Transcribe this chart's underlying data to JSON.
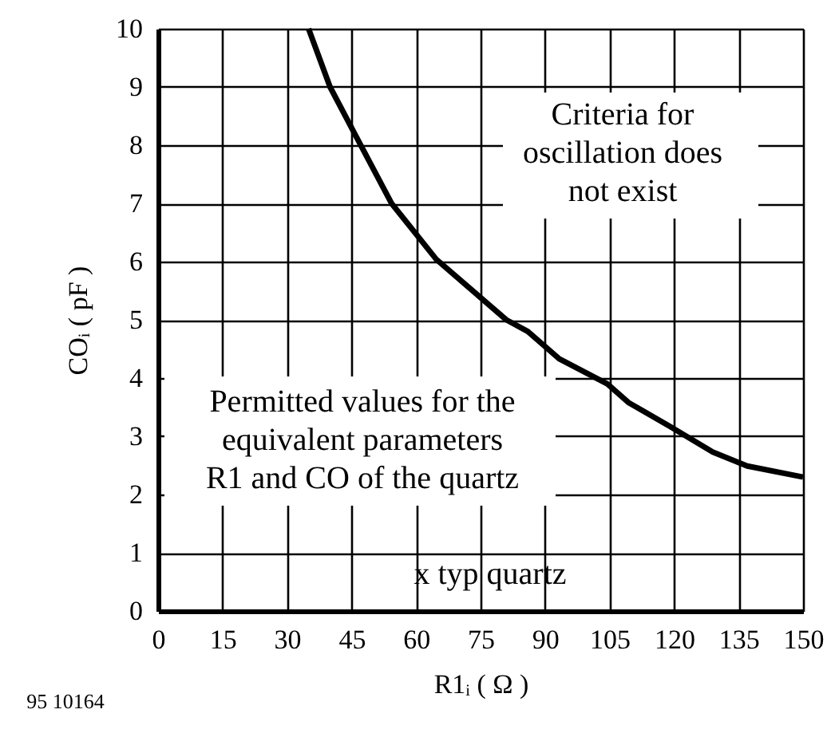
{
  "chart_data": {
    "type": "line",
    "xlabel": "R1ᵢ ( Ω )",
    "ylabel": "COᵢ ( pF )",
    "annotations": [
      "Criteria for\noscillation does\nnot exist",
      "Permitted values for the\nequivalent parameters\nR1 and CO of the quartz",
      "x typ quartz",
      "95 10164"
    ],
    "x": [
      35,
      40,
      45.7,
      54.3,
      64.7,
      81,
      86,
      93.3,
      104.5,
      109.4,
      119,
      129,
      137,
      150
    ],
    "series": [
      {
        "color": "#000000",
        "values": [
          10,
          9,
          8.2,
          7,
          6.04,
          5,
          4.8,
          4.33,
          3.9,
          3.58,
          3.17,
          2.73,
          2.49,
          2.3
        ]
      }
    ],
    "xlim": [
      0,
      150
    ],
    "xticks": [
      0,
      15,
      30,
      45,
      60,
      75,
      90,
      105,
      120,
      135,
      150
    ],
    "ylim": [
      0,
      10
    ],
    "yticks": [
      0,
      1,
      2,
      3,
      4,
      5,
      6,
      7,
      8,
      9,
      10
    ],
    "grid": true,
    "marker": "none",
    "line_style": "solid"
  }
}
